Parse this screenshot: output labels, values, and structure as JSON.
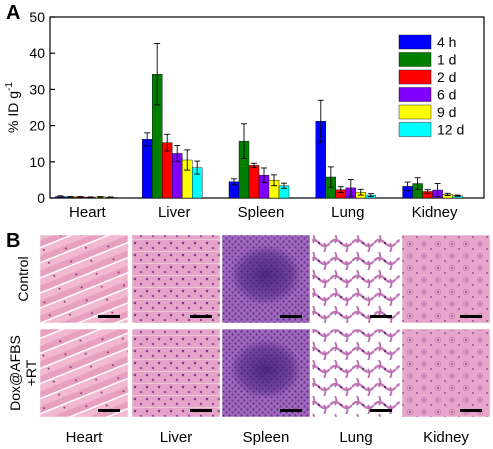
{
  "panels": {
    "a_label": "A",
    "b_label": "B"
  },
  "chart_data": {
    "type": "bar",
    "title": "",
    "xlabel": "",
    "ylabel": "% ID g",
    "ylabel_superscript": "-1",
    "ylim": [
      0,
      50
    ],
    "yticks": [
      0,
      10,
      20,
      30,
      40,
      50
    ],
    "grid": false,
    "legend_position": "top-right",
    "categories": [
      "Heart",
      "Liver",
      "Spleen",
      "Lung",
      "Kidney"
    ],
    "series": [
      {
        "name": "4 h",
        "color": "#0000ff",
        "values": [
          0.4,
          16.2,
          4.5,
          21.2,
          3.2
        ],
        "errors": [
          0.2,
          1.8,
          0.8,
          5.8,
          1.2
        ]
      },
      {
        "name": "1 d",
        "color": "#007f00",
        "values": [
          0.3,
          34.2,
          15.7,
          5.8,
          4.0
        ],
        "errors": [
          0.1,
          8.5,
          4.8,
          2.8,
          1.6
        ]
      },
      {
        "name": "2 d",
        "color": "#ff0000",
        "values": [
          0.3,
          15.3,
          9.0,
          2.3,
          1.8
        ],
        "errors": [
          0.1,
          2.3,
          0.6,
          0.8,
          0.5
        ]
      },
      {
        "name": "6 d",
        "color": "#8000ff",
        "values": [
          0.2,
          12.3,
          6.3,
          2.8,
          2.2
        ],
        "errors": [
          0.1,
          2.2,
          2.0,
          2.3,
          1.8
        ]
      },
      {
        "name": "9 d",
        "color": "#ffff00",
        "values": [
          0.3,
          10.5,
          4.9,
          1.6,
          1.0
        ],
        "errors": [
          0.1,
          2.8,
          1.5,
          0.8,
          0.3
        ]
      },
      {
        "name": "12 d",
        "color": "#00ffff",
        "values": [
          0.2,
          8.4,
          3.4,
          0.8,
          0.6
        ],
        "errors": [
          0.1,
          1.8,
          0.7,
          0.4,
          0.2
        ]
      }
    ]
  },
  "histology": {
    "rows": [
      "Control",
      "Dox@AFBS",
      "+RT"
    ],
    "columns": [
      "Heart",
      "Liver",
      "Spleen",
      "Lung",
      "Kidney"
    ]
  }
}
